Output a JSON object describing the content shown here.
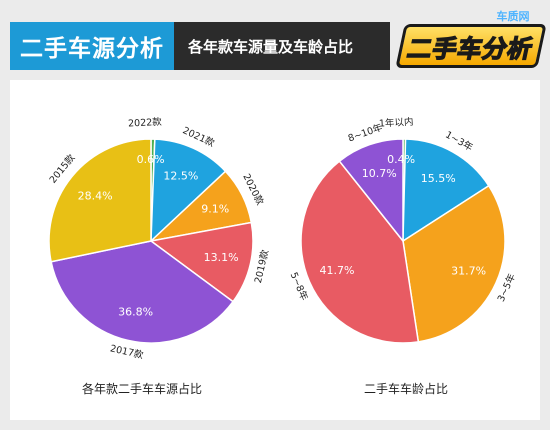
{
  "header": {
    "title": "二手车源分析",
    "subtitle": "各年款车源量及车龄占比",
    "logo_site": "车质网",
    "logo_slogan": "二手车分析"
  },
  "colors": {
    "blue": "#1fa3df",
    "orange": "#f5a21c",
    "red": "#e85b63",
    "purple": "#8e53d4",
    "yellow": "#e8c015",
    "green": "#4caf50",
    "title_bg": "#1d9ad6",
    "subtitle_bg": "#2b2b2b"
  },
  "chart_data": [
    {
      "type": "pie",
      "caption": "各年款二手车车源占比",
      "slices": [
        {
          "label": "2022款",
          "value": 0.6,
          "value_label": "0.6%",
          "color": "#4caf50"
        },
        {
          "label": "2021款",
          "value": 12.5,
          "value_label": "12.5%",
          "color": "#1fa3df"
        },
        {
          "label": "2020款",
          "value": 9.1,
          "value_label": "9.1%",
          "color": "#f5a21c"
        },
        {
          "label": "2019款",
          "value": 13.1,
          "value_label": "13.1%",
          "color": "#e85b63"
        },
        {
          "label": "2017款",
          "value": 36.8,
          "value_label": "36.8%",
          "color": "#8e53d4"
        },
        {
          "label": "2015款",
          "value": 28.4,
          "value_label": "28.4%",
          "color": "#e8c015"
        }
      ]
    },
    {
      "type": "pie",
      "caption": "二手车车龄占比",
      "slices": [
        {
          "label": "1年以内",
          "value": 0.4,
          "value_label": "0.4%",
          "color": "#4caf50"
        },
        {
          "label": "1~3年",
          "value": 15.5,
          "value_label": "15.5%",
          "color": "#1fa3df"
        },
        {
          "label": "3~5年",
          "value": 31.7,
          "value_label": "31.7%",
          "color": "#f5a21c"
        },
        {
          "label": "5~8年",
          "value": 41.7,
          "value_label": "41.7%",
          "color": "#e85b63"
        },
        {
          "label": "8~10年",
          "value": 10.7,
          "value_label": "10.7%",
          "color": "#8e53d4"
        }
      ]
    }
  ]
}
